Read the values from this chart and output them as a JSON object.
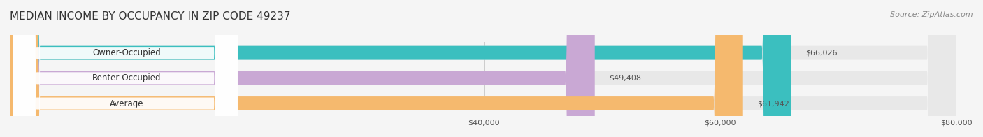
{
  "title": "MEDIAN INCOME BY OCCUPANCY IN ZIP CODE 49237",
  "source": "Source: ZipAtlas.com",
  "categories": [
    "Owner-Occupied",
    "Renter-Occupied",
    "Average"
  ],
  "values": [
    66026,
    49408,
    61942
  ],
  "bar_colors": [
    "#3bbfbf",
    "#c9a8d4",
    "#f5b96e"
  ],
  "label_colors": [
    "#3bbfbf",
    "#c9a8d4",
    "#f5b96e"
  ],
  "value_labels": [
    "$66,026",
    "$49,408",
    "$61,942"
  ],
  "xlim": [
    0,
    80000
  ],
  "xticks": [
    40000,
    60000,
    80000
  ],
  "xtick_labels": [
    "$40,000",
    "$60,000",
    "$80,000"
  ],
  "background_color": "#f5f5f5",
  "bar_background_color": "#e8e8e8",
  "title_fontsize": 11,
  "source_fontsize": 8,
  "bar_height": 0.55,
  "bar_gap": 0.18
}
